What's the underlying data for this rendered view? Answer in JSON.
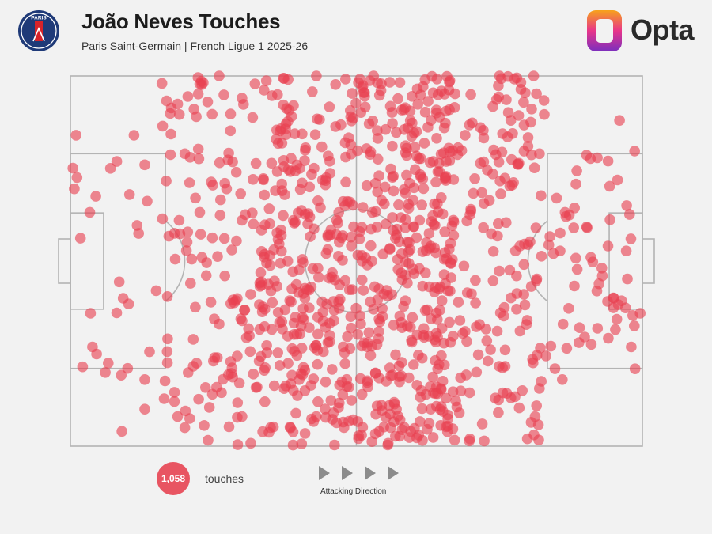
{
  "header": {
    "title": "João Neves Touches",
    "subtitle": "Paris Saint-Germain | French Ligue 1 2025-26",
    "brand": "Opta",
    "crest_text": "PARIS"
  },
  "legend": {
    "count": "1,058",
    "label": "touches",
    "direction_label": "Attacking Direction"
  },
  "colors": {
    "dot": "#e84050",
    "pitch_line": "#b4b4b4",
    "background": "#f2f2f2",
    "crest_navy": "#1f3a78",
    "crest_red": "#d8232a"
  },
  "chart_data": {
    "type": "scatter",
    "title": "João Neves Touches",
    "total_touches": 1058,
    "x_unit": "pitch length (0 = own goal line, 100 = opponent goal line)",
    "y_unit": "pitch width (0 = top touchline, 100 = bottom touchline)",
    "xlim": [
      0,
      100
    ],
    "ylim": [
      0,
      100
    ],
    "attacking_direction": "left-to-right",
    "regions": [
      {
        "x": [
          0,
          16
        ],
        "y": [
          15,
          85
        ],
        "count": 28
      },
      {
        "x": [
          16,
          33
        ],
        "y": [
          0,
          100
        ],
        "count": 130
      },
      {
        "x": [
          33,
          50
        ],
        "y": [
          0,
          100
        ],
        "count": 300
      },
      {
        "x": [
          50,
          67
        ],
        "y": [
          0,
          100
        ],
        "count": 380
      },
      {
        "x": [
          67,
          83
        ],
        "y": [
          0,
          100
        ],
        "count": 160
      },
      {
        "x": [
          83,
          100
        ],
        "y": [
          20,
          80
        ],
        "count": 60
      }
    ],
    "points": [
      [
        1,
        16
      ],
      [
        13,
        24
      ],
      [
        20,
        21
      ],
      [
        19,
        39
      ],
      [
        23,
        49
      ],
      [
        21,
        56
      ],
      [
        15,
        58
      ],
      [
        17,
        71
      ],
      [
        13,
        82
      ],
      [
        10,
        79
      ],
      [
        26,
        67
      ],
      [
        30,
        39
      ],
      [
        22,
        11
      ],
      [
        32,
        40
      ],
      [
        38,
        50
      ],
      [
        41,
        60
      ],
      [
        40,
        82
      ],
      [
        34,
        88
      ],
      [
        27,
        29
      ],
      [
        45,
        72
      ],
      [
        48,
        35
      ],
      [
        52,
        72
      ],
      [
        46,
        91
      ],
      [
        49,
        65
      ],
      [
        55,
        30
      ],
      [
        58,
        55
      ],
      [
        60,
        78
      ],
      [
        63,
        90
      ],
      [
        61,
        52
      ],
      [
        66,
        58
      ],
      [
        70,
        36
      ],
      [
        74,
        20
      ],
      [
        69,
        69
      ],
      [
        73,
        77
      ],
      [
        78,
        54
      ],
      [
        78,
        63
      ],
      [
        82,
        21
      ],
      [
        85,
        33
      ],
      [
        88,
        41
      ],
      [
        91,
        49
      ],
      [
        93,
        54
      ],
      [
        95,
        60
      ],
      [
        89,
        68
      ],
      [
        84,
        73
      ],
      [
        86,
        82
      ],
      [
        94,
        23
      ],
      [
        96,
        12
      ],
      [
        98,
        44
      ],
      [
        70,
        5
      ],
      [
        56,
        95
      ],
      [
        43,
        92
      ],
      [
        35,
        95
      ],
      [
        30,
        92
      ],
      [
        20,
        95
      ],
      [
        13,
        90
      ],
      [
        9,
        96
      ],
      [
        16,
        2
      ],
      [
        26,
        0
      ],
      [
        43,
        0
      ],
      [
        53,
        0
      ],
      [
        62,
        1
      ],
      [
        75,
        0
      ],
      [
        81,
        0
      ],
      [
        24,
        7
      ],
      [
        30,
        6
      ],
      [
        39,
        8
      ],
      [
        49,
        11
      ],
      [
        59,
        14
      ],
      [
        64,
        10
      ],
      [
        69,
        16
      ],
      [
        77,
        12
      ],
      [
        80,
        19
      ],
      [
        29,
        26
      ],
      [
        37,
        31
      ],
      [
        45,
        43
      ],
      [
        51,
        50
      ],
      [
        57,
        43
      ],
      [
        63,
        46
      ],
      [
        67,
        28
      ],
      [
        27,
        54
      ],
      [
        34,
        63
      ],
      [
        44,
        61
      ],
      [
        53,
        63
      ],
      [
        58,
        68
      ],
      [
        64,
        64
      ],
      [
        71,
        80
      ],
      [
        76,
        74
      ],
      [
        79,
        85
      ],
      [
        25,
        77
      ],
      [
        33,
        77
      ],
      [
        41,
        85
      ],
      [
        51,
        86
      ],
      [
        57,
        90
      ],
      [
        64,
        84
      ],
      [
        68,
        91
      ],
      [
        72,
        94
      ]
    ]
  }
}
